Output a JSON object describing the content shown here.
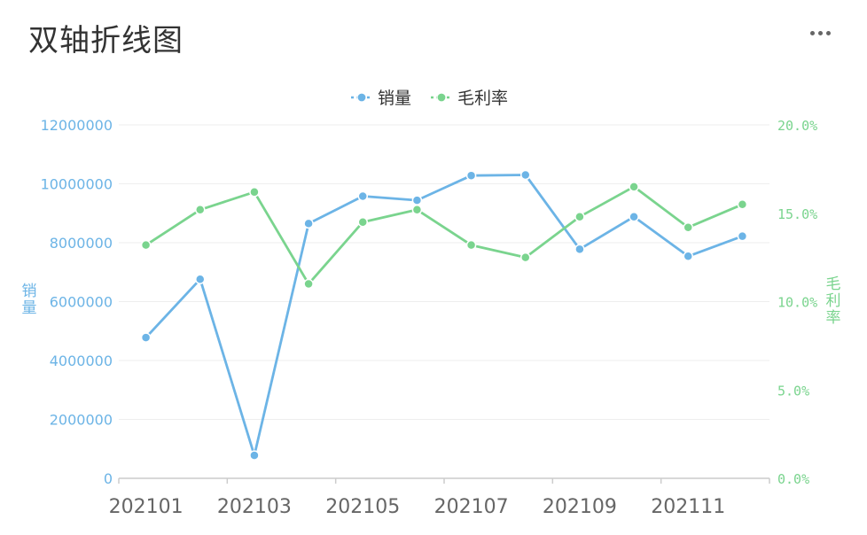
{
  "header": {
    "title": "双轴折线图"
  },
  "colors": {
    "sales": "#6cb4e6",
    "margin": "#7ad48e",
    "grid": "#eeeeee",
    "axis": "#cccccc"
  },
  "chart_data": {
    "type": "line",
    "title": "双轴折线图",
    "x": [
      "202101",
      "202102",
      "202103",
      "202104",
      "202105",
      "202106",
      "202107",
      "202108",
      "202109",
      "202110",
      "202111",
      "202112"
    ],
    "x_tick_labels": [
      "202101",
      "202103",
      "202105",
      "202107",
      "202109",
      "202111"
    ],
    "series": [
      {
        "name": "销量",
        "axis": "left",
        "values": [
          4780000,
          6760000,
          780000,
          8650000,
          9580000,
          9440000,
          10280000,
          10300000,
          7780000,
          8880000,
          7540000,
          8220000
        ]
      },
      {
        "name": "毛利率",
        "axis": "right",
        "values": [
          0.132,
          0.152,
          0.162,
          0.11,
          0.145,
          0.152,
          0.132,
          0.125,
          0.148,
          0.165,
          0.142,
          0.155
        ]
      }
    ],
    "y_left": {
      "label": "销量",
      "lim": [
        0,
        12000000
      ],
      "ticks": [
        "0",
        "2000000",
        "4000000",
        "6000000",
        "8000000",
        "10000000",
        "12000000"
      ]
    },
    "y_right": {
      "label": "毛利率",
      "lim": [
        0,
        0.2
      ],
      "ticks": [
        "0.0%",
        "5.0%",
        "10.0%",
        "15.0%",
        "20.0%"
      ]
    },
    "legend_position": "top-center",
    "grid": true
  }
}
